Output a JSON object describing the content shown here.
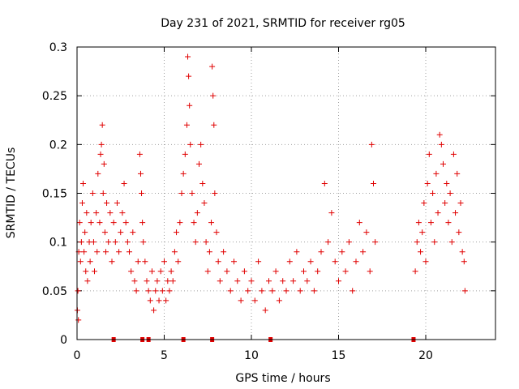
{
  "chart_data": {
    "type": "scatter",
    "title": "Day 231 of 2021, SRMTID for receiver rg05",
    "xlabel": "GPS time / hours",
    "ylabel": "SRMTID / TECUs",
    "xlim": [
      0,
      24
    ],
    "ylim": [
      0,
      0.3
    ],
    "xticks": [
      0,
      5,
      10,
      15,
      20
    ],
    "xtick_labels": [
      "0",
      "5",
      "10",
      "15",
      "20"
    ],
    "yticks": [
      0,
      0.05,
      0.1,
      0.15,
      0.2,
      0.25,
      0.3
    ],
    "ytick_labels": [
      "0",
      "0.05",
      "0.1",
      "0.15",
      "0.2",
      "0.25",
      "0.3"
    ],
    "grid": true,
    "marker": "+",
    "color": "#e00000",
    "baseline_markers_x": [
      2.1,
      3.75,
      4.1,
      6.1,
      7.75,
      11.1,
      19.3
    ],
    "series": [
      {
        "name": "SRMTID",
        "points": [
          [
            0.02,
            0.03
          ],
          [
            0.05,
            0.05
          ],
          [
            0.08,
            0.02
          ],
          [
            0.1,
            0.09
          ],
          [
            0.15,
            0.12
          ],
          [
            0.2,
            0.08
          ],
          [
            0.25,
            0.1
          ],
          [
            0.3,
            0.14
          ],
          [
            0.35,
            0.16
          ],
          [
            0.4,
            0.09
          ],
          [
            0.45,
            0.11
          ],
          [
            0.5,
            0.07
          ],
          [
            0.55,
            0.13
          ],
          [
            0.6,
            0.06
          ],
          [
            0.7,
            0.1
          ],
          [
            0.75,
            0.08
          ],
          [
            0.8,
            0.12
          ],
          [
            0.9,
            0.15
          ],
          [
            0.95,
            0.1
          ],
          [
            1.0,
            0.07
          ],
          [
            1.1,
            0.13
          ],
          [
            1.15,
            0.09
          ],
          [
            1.2,
            0.17
          ],
          [
            1.3,
            0.12
          ],
          [
            1.35,
            0.19
          ],
          [
            1.4,
            0.2
          ],
          [
            1.45,
            0.22
          ],
          [
            1.5,
            0.15
          ],
          [
            1.55,
            0.18
          ],
          [
            1.6,
            0.11
          ],
          [
            1.65,
            0.09
          ],
          [
            1.7,
            0.14
          ],
          [
            1.8,
            0.1
          ],
          [
            1.9,
            0.13
          ],
          [
            2.0,
            0.08
          ],
          [
            2.1,
            0.12
          ],
          [
            2.2,
            0.1
          ],
          [
            2.3,
            0.14
          ],
          [
            2.4,
            0.09
          ],
          [
            2.5,
            0.11
          ],
          [
            2.6,
            0.13
          ],
          [
            2.7,
            0.16
          ],
          [
            2.8,
            0.12
          ],
          [
            2.9,
            0.1
          ],
          [
            3.0,
            0.09
          ],
          [
            3.1,
            0.07
          ],
          [
            3.2,
            0.11
          ],
          [
            3.3,
            0.06
          ],
          [
            3.4,
            0.05
          ],
          [
            3.5,
            0.08
          ],
          [
            3.6,
            0.19
          ],
          [
            3.65,
            0.17
          ],
          [
            3.7,
            0.15
          ],
          [
            3.75,
            0.12
          ],
          [
            3.8,
            0.1
          ],
          [
            3.9,
            0.08
          ],
          [
            4.0,
            0.06
          ],
          [
            4.1,
            0.05
          ],
          [
            4.2,
            0.04
          ],
          [
            4.3,
            0.07
          ],
          [
            4.4,
            0.03
          ],
          [
            4.5,
            0.05
          ],
          [
            4.6,
            0.06
          ],
          [
            4.7,
            0.04
          ],
          [
            4.8,
            0.07
          ],
          [
            4.9,
            0.05
          ],
          [
            5.0,
            0.08
          ],
          [
            5.1,
            0.04
          ],
          [
            5.2,
            0.06
          ],
          [
            5.3,
            0.05
          ],
          [
            5.4,
            0.07
          ],
          [
            5.5,
            0.06
          ],
          [
            5.6,
            0.09
          ],
          [
            5.7,
            0.11
          ],
          [
            5.8,
            0.08
          ],
          [
            5.9,
            0.12
          ],
          [
            6.0,
            0.15
          ],
          [
            6.1,
            0.17
          ],
          [
            6.2,
            0.19
          ],
          [
            6.3,
            0.22
          ],
          [
            6.35,
            0.29
          ],
          [
            6.4,
            0.27
          ],
          [
            6.45,
            0.24
          ],
          [
            6.5,
            0.2
          ],
          [
            6.6,
            0.15
          ],
          [
            6.7,
            0.12
          ],
          [
            6.8,
            0.1
          ],
          [
            6.9,
            0.13
          ],
          [
            7.0,
            0.18
          ],
          [
            7.1,
            0.2
          ],
          [
            7.2,
            0.16
          ],
          [
            7.3,
            0.14
          ],
          [
            7.4,
            0.1
          ],
          [
            7.5,
            0.07
          ],
          [
            7.6,
            0.09
          ],
          [
            7.7,
            0.12
          ],
          [
            7.75,
            0.28
          ],
          [
            7.8,
            0.25
          ],
          [
            7.85,
            0.22
          ],
          [
            7.9,
            0.15
          ],
          [
            8.0,
            0.11
          ],
          [
            8.1,
            0.08
          ],
          [
            8.2,
            0.06
          ],
          [
            8.4,
            0.09
          ],
          [
            8.6,
            0.07
          ],
          [
            8.8,
            0.05
          ],
          [
            9.0,
            0.08
          ],
          [
            9.2,
            0.06
          ],
          [
            9.4,
            0.04
          ],
          [
            9.6,
            0.07
          ],
          [
            9.8,
            0.05
          ],
          [
            10.0,
            0.06
          ],
          [
            10.2,
            0.04
          ],
          [
            10.4,
            0.08
          ],
          [
            10.6,
            0.05
          ],
          [
            10.8,
            0.03
          ],
          [
            11.0,
            0.06
          ],
          [
            11.2,
            0.05
          ],
          [
            11.4,
            0.07
          ],
          [
            11.6,
            0.04
          ],
          [
            11.8,
            0.06
          ],
          [
            12.0,
            0.05
          ],
          [
            12.2,
            0.08
          ],
          [
            12.4,
            0.06
          ],
          [
            12.6,
            0.09
          ],
          [
            12.8,
            0.05
          ],
          [
            13.0,
            0.07
          ],
          [
            13.2,
            0.06
          ],
          [
            13.4,
            0.08
          ],
          [
            13.6,
            0.05
          ],
          [
            13.8,
            0.07
          ],
          [
            14.0,
            0.09
          ],
          [
            14.2,
            0.16
          ],
          [
            14.4,
            0.1
          ],
          [
            14.6,
            0.13
          ],
          [
            14.8,
            0.08
          ],
          [
            15.0,
            0.06
          ],
          [
            15.2,
            0.09
          ],
          [
            15.4,
            0.07
          ],
          [
            15.6,
            0.1
          ],
          [
            15.8,
            0.05
          ],
          [
            16.0,
            0.08
          ],
          [
            16.2,
            0.12
          ],
          [
            16.4,
            0.09
          ],
          [
            16.6,
            0.11
          ],
          [
            16.8,
            0.07
          ],
          [
            16.9,
            0.2
          ],
          [
            17.0,
            0.16
          ],
          [
            17.1,
            0.1
          ],
          [
            19.4,
            0.07
          ],
          [
            19.5,
            0.1
          ],
          [
            19.6,
            0.12
          ],
          [
            19.7,
            0.09
          ],
          [
            19.8,
            0.11
          ],
          [
            19.9,
            0.14
          ],
          [
            20.0,
            0.08
          ],
          [
            20.1,
            0.16
          ],
          [
            20.2,
            0.19
          ],
          [
            20.3,
            0.12
          ],
          [
            20.4,
            0.15
          ],
          [
            20.5,
            0.1
          ],
          [
            20.6,
            0.17
          ],
          [
            20.7,
            0.13
          ],
          [
            20.8,
            0.21
          ],
          [
            20.9,
            0.2
          ],
          [
            21.0,
            0.18
          ],
          [
            21.1,
            0.14
          ],
          [
            21.2,
            0.16
          ],
          [
            21.3,
            0.12
          ],
          [
            21.4,
            0.15
          ],
          [
            21.5,
            0.1
          ],
          [
            21.6,
            0.19
          ],
          [
            21.7,
            0.13
          ],
          [
            21.8,
            0.17
          ],
          [
            21.9,
            0.11
          ],
          [
            22.0,
            0.14
          ],
          [
            22.1,
            0.09
          ],
          [
            22.2,
            0.08
          ],
          [
            22.25,
            0.05
          ]
        ]
      }
    ]
  }
}
